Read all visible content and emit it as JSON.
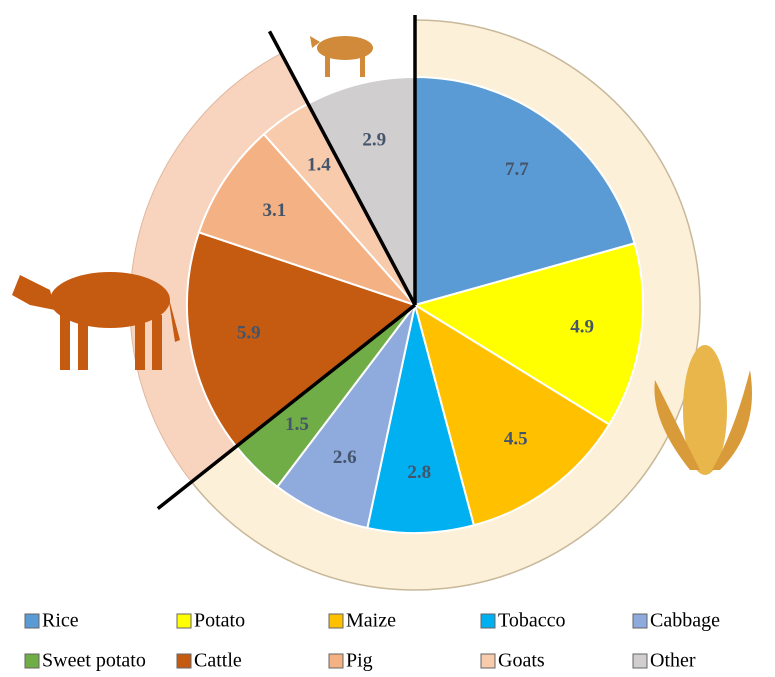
{
  "chart_data": {
    "type": "pie",
    "categories": [
      "Rice",
      "Potato",
      "Maize",
      "Tobacco",
      "Cabbage",
      "Sweet potato",
      "Cattle",
      "Pig",
      "Goats",
      "Other"
    ],
    "values": [
      7.7,
      4.9,
      4.5,
      2.8,
      2.6,
      1.5,
      5.9,
      3.1,
      1.4,
      2.9
    ],
    "colors": [
      "#5b9bd5",
      "#ffff00",
      "#ffc000",
      "#00b0f0",
      "#8faadc",
      "#70ad47",
      "#c55a11",
      "#f4b183",
      "#f8cbad",
      "#d0cece"
    ]
  }
}
